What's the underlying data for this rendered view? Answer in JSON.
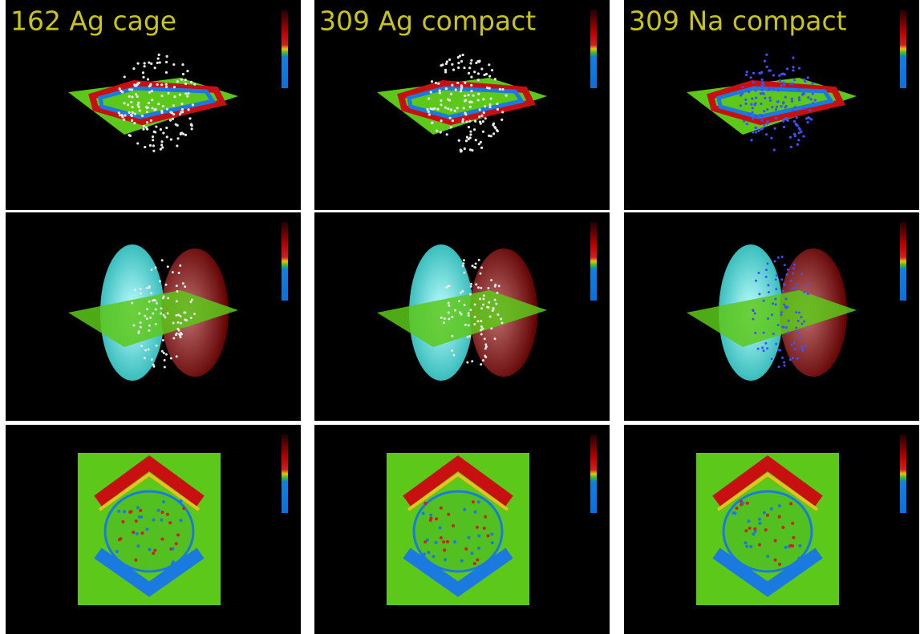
{
  "panels": [
    {
      "title": "162 Ag cage"
    },
    {
      "title": "309 Ag compact"
    },
    {
      "title": "309 Na compact"
    }
  ]
}
